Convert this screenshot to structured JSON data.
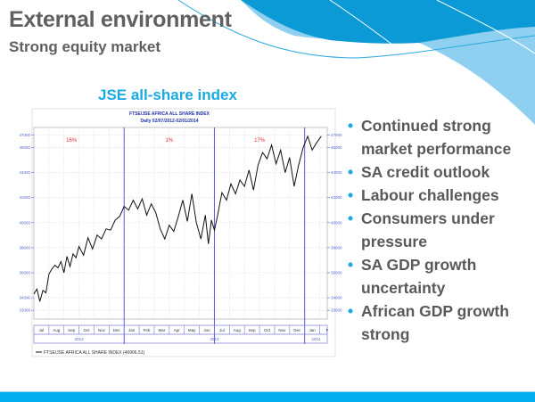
{
  "slide": {
    "title": "External environment",
    "subtitle": "Strong equity market",
    "chart_heading": "JSE all-share index",
    "bullets": [
      "Continued strong market performance",
      "SA credit outlook",
      "Labour challenges",
      "Consumers under pressure",
      "SA GDP growth uncertainty",
      "African GDP growth strong"
    ],
    "accent_color": "#1ba9e1",
    "footer_color": "#00aeef"
  },
  "chart_data": {
    "type": "line",
    "title": "FTSE/JSE  AFRICA ALL SHARE INDEX",
    "subtitle": "Daily 02/07/2012-02/01/2014",
    "legend": "FTSE/JSE  AFRICA ALL SHARE INDEX (46906.51)",
    "legend_position": "bottom-left",
    "y_ticks": [
      47000,
      46000,
      44000,
      42000,
      40000,
      38000,
      36000,
      34000,
      33000
    ],
    "y_tick_labels": [
      "47000",
      "46000",
      "44000",
      "42000",
      "40000",
      "38000",
      "36000",
      "34000",
      "33000"
    ],
    "ylim": [
      32300,
      47600
    ],
    "months": [
      "Jul",
      "Aug",
      "Sep",
      "Oct",
      "Nov",
      "Dec",
      "Jan",
      "Feb",
      "Mar",
      "Apr",
      "May",
      "Jun",
      "Jul",
      "Aug",
      "Sep",
      "Oct",
      "Nov",
      "Dec",
      "Jan",
      "F"
    ],
    "years": [
      {
        "label": "2012",
        "start": 0,
        "end": 6
      },
      {
        "label": "2013",
        "start": 6,
        "end": 18
      },
      {
        "label": "2014",
        "start": 18,
        "end": 19.5
      }
    ],
    "period_dividers": [
      6,
      12,
      18
    ],
    "annotations": [
      {
        "label": "16%",
        "x": 2.5
      },
      {
        "label": "1%",
        "x": 9
      },
      {
        "label": "17%",
        "x": 15
      }
    ],
    "grid": true,
    "series": [
      {
        "name": "FTSE/JSE AFRICA ALL SHARE INDEX",
        "x": [
          0,
          0.2,
          0.4,
          0.6,
          0.8,
          1.0,
          1.2,
          1.4,
          1.6,
          1.8,
          2.0,
          2.2,
          2.4,
          2.6,
          2.8,
          3.0,
          3.3,
          3.6,
          3.9,
          4.2,
          4.5,
          4.8,
          5.1,
          5.4,
          5.7,
          6.0,
          6.3,
          6.6,
          6.9,
          7.2,
          7.5,
          7.8,
          8.1,
          8.4,
          8.7,
          9.0,
          9.3,
          9.6,
          9.9,
          10.2,
          10.5,
          10.8,
          11.1,
          11.4,
          11.6,
          11.8,
          12.0,
          12.2,
          12.5,
          12.8,
          13.1,
          13.4,
          13.7,
          14.0,
          14.3,
          14.6,
          14.9,
          15.2,
          15.5,
          15.8,
          16.1,
          16.4,
          16.7,
          17.0,
          17.3,
          17.6,
          17.9,
          18.2,
          18.5,
          18.8,
          19.1
        ],
        "values": [
          34300,
          34700,
          33700,
          34600,
          34400,
          35900,
          36300,
          36600,
          36400,
          36900,
          36000,
          37300,
          36500,
          37500,
          37200,
          38100,
          37400,
          38800,
          37900,
          39000,
          38700,
          39500,
          39400,
          40200,
          40500,
          41300,
          41000,
          41800,
          41100,
          41900,
          40600,
          41500,
          40800,
          39500,
          38700,
          39800,
          39300,
          40500,
          41800,
          40100,
          42300,
          40000,
          38700,
          40600,
          38300,
          40200,
          39400,
          40500,
          42400,
          41800,
          43100,
          42300,
          43400,
          42900,
          44200,
          42600,
          44600,
          45600,
          45100,
          46200,
          44700,
          45800,
          44000,
          45200,
          42900,
          44600,
          46000,
          46900,
          45800,
          46400,
          46900
        ]
      }
    ]
  }
}
